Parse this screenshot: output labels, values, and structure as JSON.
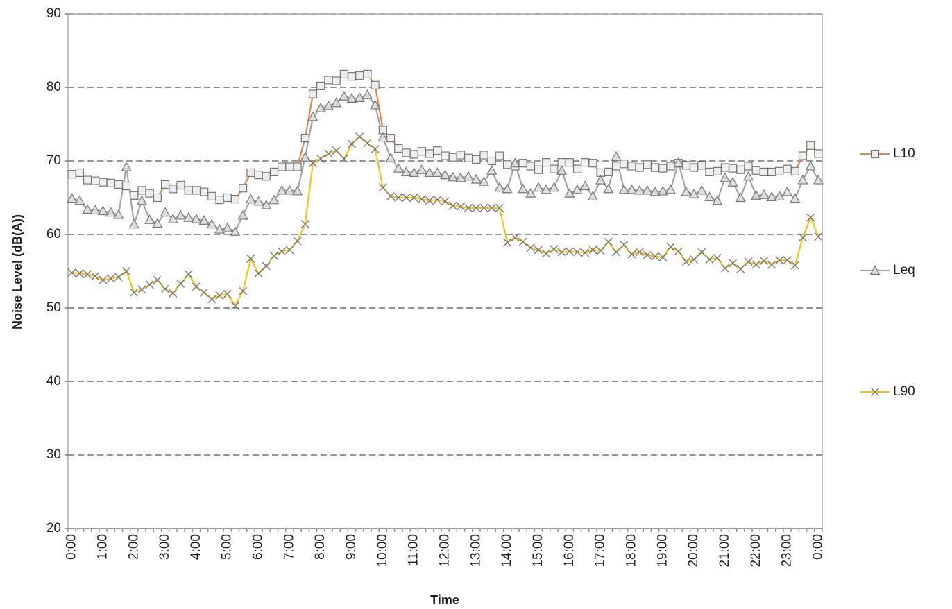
{
  "chart_data": {
    "type": "line",
    "x_label": "Time",
    "y_label": "Noise Level (dB(A))",
    "categories": [
      "0:00",
      null,
      null,
      null,
      "1:00",
      null,
      null,
      null,
      "2:00",
      null,
      null,
      null,
      "3:00",
      null,
      null,
      null,
      "4:00",
      null,
      null,
      null,
      "5:00",
      null,
      null,
      null,
      "6:00",
      null,
      null,
      null,
      "7:00",
      null,
      null,
      null,
      "8:00",
      null,
      null,
      null,
      "9:00",
      null,
      null,
      null,
      "10:00",
      null,
      null,
      null,
      "11:00",
      null,
      null,
      null,
      "12:00",
      null,
      null,
      null,
      "13:00",
      null,
      null,
      null,
      "14:00",
      null,
      null,
      null,
      "15:00",
      null,
      null,
      null,
      "16:00",
      null,
      null,
      null,
      "17:00",
      null,
      null,
      null,
      "18:00",
      null,
      null,
      null,
      "19:00",
      null,
      null,
      null,
      "20:00",
      null,
      null,
      null,
      "21:00",
      null,
      null,
      null,
      "22:00",
      null,
      null,
      null,
      "23:00",
      null,
      null,
      null,
      "0:00"
    ],
    "ylim": [
      20,
      90
    ],
    "yticks": [
      20,
      30,
      40,
      50,
      60,
      70,
      80,
      90
    ],
    "grid": true,
    "series": [
      {
        "name": "L10",
        "color": "#e0844c",
        "marker": "square",
        "values": [
          68.2,
          68.4,
          67.4,
          67.3,
          67.1,
          67.0,
          66.8,
          66.6,
          65.3,
          66.0,
          65.6,
          65.0,
          66.8,
          66.2,
          66.7,
          66.0,
          66.0,
          65.8,
          65.2,
          64.7,
          65.0,
          64.8,
          66.3,
          68.4,
          68.1,
          67.9,
          68.5,
          69.2,
          69.2,
          69.2,
          73.1,
          79.1,
          80.2,
          81.0,
          80.9,
          81.8,
          81.5,
          81.6,
          81.8,
          80.3,
          74.2,
          73.1,
          71.7,
          71.1,
          70.9,
          71.3,
          71.0,
          71.4,
          70.7,
          70.5,
          70.8,
          70.4,
          70.2,
          70.8,
          70.0,
          70.7,
          69.5,
          69.3,
          69.7,
          69.3,
          68.8,
          69.8,
          68.9,
          69.8,
          69.8,
          68.9,
          69.8,
          69.7,
          68.4,
          68.5,
          69.3,
          69.6,
          69.3,
          69.1,
          69.5,
          69.1,
          69.0,
          69.3,
          69.7,
          69.4,
          69.1,
          69.4,
          68.5,
          68.6,
          69.1,
          69.0,
          68.8,
          69.3,
          68.7,
          68.5,
          68.5,
          68.6,
          68.9,
          68.6,
          70.7,
          72.1,
          71.0
        ]
      },
      {
        "name": "Leq",
        "color": "#a5a5a5",
        "marker": "triangle",
        "values": [
          64.9,
          64.6,
          63.4,
          63.3,
          63.2,
          63.0,
          62.7,
          69.2,
          61.4,
          64.6,
          62.0,
          61.5,
          63.0,
          62.1,
          62.6,
          62.3,
          62.1,
          61.9,
          61.4,
          60.7,
          60.9,
          60.4,
          62.6,
          64.8,
          64.5,
          64.0,
          64.7,
          66.0,
          66.0,
          65.9,
          70.5,
          76.0,
          77.2,
          77.5,
          77.9,
          78.8,
          78.5,
          78.6,
          79.0,
          77.6,
          73.2,
          70.4,
          69.0,
          68.5,
          68.4,
          68.8,
          68.4,
          68.4,
          68.1,
          67.8,
          67.7,
          67.9,
          67.5,
          67.2,
          68.7,
          66.4,
          66.2,
          69.7,
          66.2,
          65.6,
          66.4,
          66.1,
          66.4,
          68.7,
          65.6,
          66.1,
          66.6,
          65.2,
          67.4,
          66.2,
          70.6,
          66.1,
          66.1,
          66.0,
          66.0,
          65.8,
          65.9,
          66.1,
          69.8,
          65.8,
          65.5,
          66.0,
          65.1,
          64.6,
          67.7,
          67.1,
          65.0,
          67.9,
          65.3,
          65.4,
          65.1,
          65.2,
          65.8,
          64.9,
          67.4,
          69.3,
          67.4
        ]
      },
      {
        "name": "L90",
        "color": "#f4c21a",
        "marker": "cross",
        "values": [
          54.8,
          54.7,
          54.6,
          54.3,
          53.8,
          54.0,
          54.2,
          55.0,
          52.1,
          52.5,
          53.2,
          53.8,
          52.6,
          52.0,
          53.3,
          54.6,
          52.9,
          52.1,
          51.2,
          51.7,
          51.9,
          50.3,
          52.3,
          56.7,
          54.7,
          55.7,
          57.1,
          57.7,
          57.9,
          59.1,
          61.4,
          69.7,
          70.3,
          71.0,
          71.4,
          70.3,
          72.3,
          73.3,
          72.4,
          71.6,
          66.4,
          65.2,
          65.0,
          65.0,
          65.0,
          64.8,
          64.6,
          64.7,
          64.5,
          63.9,
          63.8,
          63.6,
          63.6,
          63.6,
          63.6,
          63.6,
          58.9,
          59.6,
          59.0,
          58.2,
          57.9,
          57.4,
          58.0,
          57.6,
          57.7,
          57.6,
          57.5,
          57.9,
          57.8,
          59.0,
          57.6,
          58.6,
          57.3,
          57.6,
          57.2,
          57.0,
          56.9,
          58.3,
          57.7,
          56.3,
          56.6,
          57.6,
          56.6,
          56.8,
          55.4,
          56.1,
          55.3,
          56.3,
          55.9,
          56.4,
          55.9,
          56.5,
          56.5,
          55.8,
          59.6,
          62.3,
          59.7
        ]
      }
    ]
  }
}
